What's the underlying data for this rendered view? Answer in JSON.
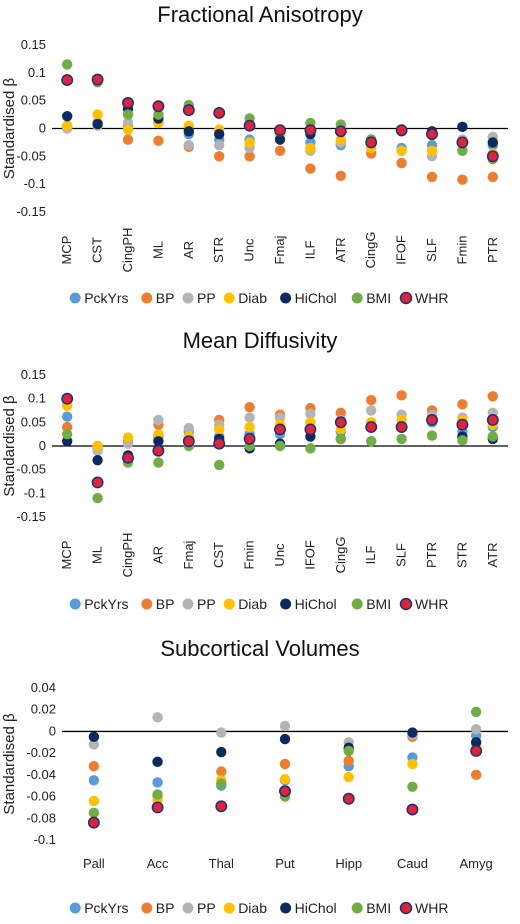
{
  "legend": [
    {
      "name": "PckYrs",
      "color": "#5b9bd5"
    },
    {
      "name": "BP",
      "color": "#ed7d31"
    },
    {
      "name": "PP",
      "color": "#b4b4b4"
    },
    {
      "name": "Diab",
      "color": "#ffc000"
    },
    {
      "name": "HiChol",
      "color": "#0d2a5e"
    },
    {
      "name": "BMI",
      "color": "#70ad47"
    },
    {
      "name": "WHR",
      "color": "#d9263a"
    }
  ],
  "chart_data": [
    {
      "type": "scatter",
      "title": "Fractional Anisotropy",
      "ylabel": "Standardised β",
      "ylim": [
        -0.15,
        0.15
      ],
      "yticks": [
        "0.15",
        "0.1",
        "0.05",
        "0",
        "-0.05",
        "-0.1",
        "-0.15"
      ],
      "categories": [
        "MCP",
        "CST",
        "CingPH",
        "ML",
        "AR",
        "STR",
        "Unc",
        "Fmaj",
        "ILF",
        "ATR",
        "CingG",
        "IFOF",
        "SLF",
        "Fmin",
        "PTR"
      ],
      "series": [
        {
          "name": "PckYrs",
          "values": [
            0.003,
            0.01,
            0.005,
            0.01,
            -0.01,
            -0.02,
            -0.02,
            -0.01,
            -0.025,
            -0.03,
            -0.02,
            -0.035,
            -0.03,
            -0.025,
            -0.03
          ]
        },
        {
          "name": "BP",
          "values": [
            0.005,
            0.01,
            -0.02,
            -0.022,
            -0.033,
            -0.05,
            -0.05,
            -0.04,
            -0.072,
            -0.085,
            -0.045,
            -0.062,
            -0.087,
            -0.092,
            -0.087
          ]
        },
        {
          "name": "PP",
          "values": [
            0.0,
            0.005,
            0.01,
            0.01,
            -0.03,
            -0.03,
            -0.035,
            -0.01,
            -0.04,
            -0.025,
            -0.025,
            -0.04,
            -0.05,
            -0.02,
            -0.015
          ]
        },
        {
          "name": "Diab",
          "values": [
            0.005,
            0.025,
            -0.002,
            0.01,
            0.005,
            -0.002,
            -0.025,
            -0.01,
            -0.035,
            -0.02,
            -0.035,
            -0.04,
            -0.04,
            -0.04,
            -0.045
          ]
        },
        {
          "name": "HiChol",
          "values": [
            0.022,
            0.008,
            0.035,
            0.018,
            -0.005,
            -0.01,
            0.005,
            -0.02,
            -0.01,
            -0.005,
            -0.02,
            -0.005,
            -0.005,
            0.003,
            -0.025
          ]
        },
        {
          "name": "BMI",
          "values": [
            0.115,
            0.083,
            0.025,
            0.025,
            0.042,
            0.028,
            0.018,
            -0.005,
            0.01,
            0.007,
            -0.02,
            -0.003,
            -0.012,
            -0.04,
            -0.055
          ]
        },
        {
          "name": "WHR",
          "values": [
            0.087,
            0.088,
            0.046,
            0.04,
            0.033,
            0.028,
            0.005,
            -0.003,
            -0.003,
            -0.005,
            -0.025,
            -0.003,
            -0.01,
            -0.025,
            -0.05
          ]
        }
      ]
    },
    {
      "type": "scatter",
      "title": "Mean Diffusivity",
      "ylabel": "Standardised β",
      "ylim": [
        -0.15,
        0.15
      ],
      "yticks": [
        "0.15",
        "0.1",
        "0.05",
        "0",
        "-0.05",
        "-0.1",
        "-0.15"
      ],
      "categories": [
        "MCP",
        "ML",
        "CingPH",
        "AR",
        "Fmaj",
        "CST",
        "Fmin",
        "Unc",
        "IFOF",
        "CingG",
        "ILF",
        "SLF",
        "PTR",
        "STR",
        "ATR"
      ],
      "series": [
        {
          "name": "PckYrs",
          "values": [
            0.062,
            -0.005,
            0.01,
            0.02,
            0.03,
            0.02,
            0.025,
            0.025,
            0.035,
            0.03,
            0.01,
            0.04,
            0.05,
            0.03,
            0.04
          ]
        },
        {
          "name": "BP",
          "values": [
            0.04,
            0.0,
            -0.02,
            0.045,
            0.02,
            0.055,
            0.082,
            0.066,
            0.08,
            0.07,
            0.097,
            0.107,
            0.075,
            0.088,
            0.105
          ]
        },
        {
          "name": "PP",
          "values": [
            0.09,
            -0.01,
            0.005,
            0.055,
            0.038,
            0.045,
            0.06,
            0.06,
            0.068,
            0.055,
            0.075,
            0.066,
            0.065,
            0.06,
            0.07
          ]
        },
        {
          "name": "Diab",
          "values": [
            0.085,
            0.0,
            0.018,
            0.025,
            0.02,
            0.035,
            0.04,
            0.045,
            0.05,
            0.035,
            0.05,
            0.055,
            0.055,
            0.055,
            0.045
          ]
        },
        {
          "name": "HiChol",
          "values": [
            0.01,
            -0.03,
            -0.02,
            0.01,
            0.01,
            0.015,
            -0.005,
            0.005,
            0.02,
            0.015,
            0.04,
            0.04,
            0.055,
            0.02,
            0.015
          ]
        },
        {
          "name": "BMI",
          "values": [
            0.025,
            -0.11,
            -0.035,
            -0.035,
            0.0,
            -0.04,
            0.0,
            0.0,
            -0.005,
            0.015,
            0.01,
            0.015,
            0.022,
            0.012,
            0.02
          ]
        },
        {
          "name": "WHR",
          "values": [
            0.1,
            -0.077,
            -0.025,
            -0.01,
            0.01,
            0.005,
            0.015,
            0.035,
            0.035,
            0.05,
            0.04,
            0.04,
            0.055,
            0.045,
            0.055
          ]
        }
      ]
    },
    {
      "type": "scatter",
      "title": "Subcortical Volumes",
      "ylabel": "Standardised β",
      "ylim": [
        -0.1,
        0.04
      ],
      "yticks": [
        "0.04",
        "0.02",
        "0",
        "-0.02",
        "-0.04",
        "-0.06",
        "-0.08",
        "-0.1"
      ],
      "categories": [
        "Pall",
        "Acc",
        "Thal",
        "Put",
        "Hipp",
        "Caud",
        "Amyg"
      ],
      "series": [
        {
          "name": "PckYrs",
          "values": [
            -0.045,
            -0.047,
            -0.05,
            -0.045,
            -0.032,
            -0.024,
            -0.004
          ]
        },
        {
          "name": "BP",
          "values": [
            -0.032,
            -0.06,
            -0.037,
            -0.03,
            -0.027,
            -0.005,
            -0.04
          ]
        },
        {
          "name": "PP",
          "values": [
            -0.012,
            0.013,
            -0.001,
            0.005,
            -0.01,
            -0.003,
            0.002
          ]
        },
        {
          "name": "Diab",
          "values": [
            -0.064,
            -0.063,
            -0.045,
            -0.044,
            -0.042,
            -0.03,
            -0.012
          ]
        },
        {
          "name": "HiChol",
          "values": [
            -0.005,
            -0.028,
            -0.019,
            -0.007,
            -0.015,
            -0.001,
            -0.01
          ]
        },
        {
          "name": "BMI",
          "values": [
            -0.075,
            -0.058,
            -0.048,
            -0.06,
            -0.018,
            -0.051,
            0.018
          ]
        },
        {
          "name": "WHR",
          "values": [
            -0.084,
            -0.07,
            -0.069,
            -0.055,
            -0.062,
            -0.072,
            -0.018
          ]
        }
      ]
    }
  ]
}
